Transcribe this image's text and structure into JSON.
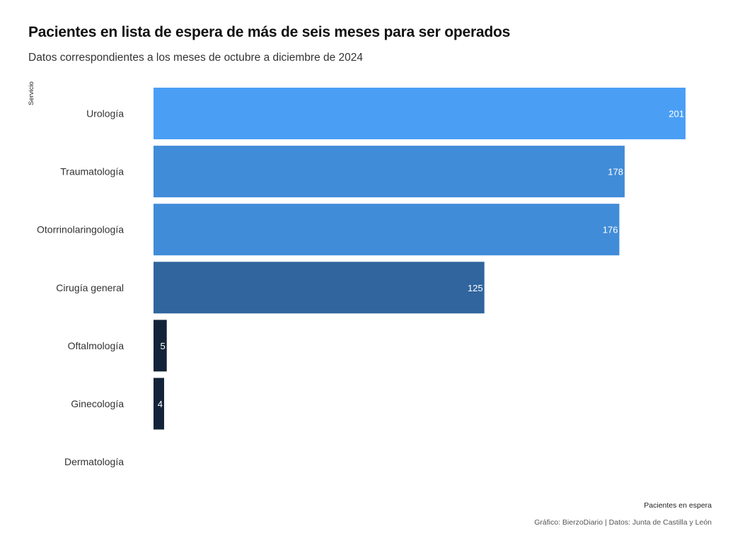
{
  "chart_data": {
    "type": "bar",
    "orientation": "horizontal",
    "title": "Pacientes en lista de espera de más de seis meses para ser operados",
    "subtitle": "Datos correspondientes a los meses de octubre a diciembre de 2024",
    "xlabel": "Pacientes en espera",
    "ylabel": "Servicio",
    "caption": "Gráfico: BierzoDiario | Datos: Junta de Castilla y León",
    "categories": [
      "Urología",
      "Traumatología",
      "Otorrinolaringología",
      "Cirugía general",
      "Oftalmología",
      "Ginecología",
      "Dermatología"
    ],
    "values": [
      201,
      178,
      176,
      125,
      5,
      4,
      0
    ],
    "value_labels": [
      "201",
      "178",
      "176",
      "125",
      "5",
      "4",
      ""
    ],
    "colors": [
      "#4a9ff5",
      "#418cd8",
      "#418cd8",
      "#30659e",
      "#132339",
      "#132339",
      "#132339"
    ],
    "label_color": "#ffffff",
    "xlim": [
      0,
      201
    ],
    "grid": false,
    "legend": "none"
  }
}
